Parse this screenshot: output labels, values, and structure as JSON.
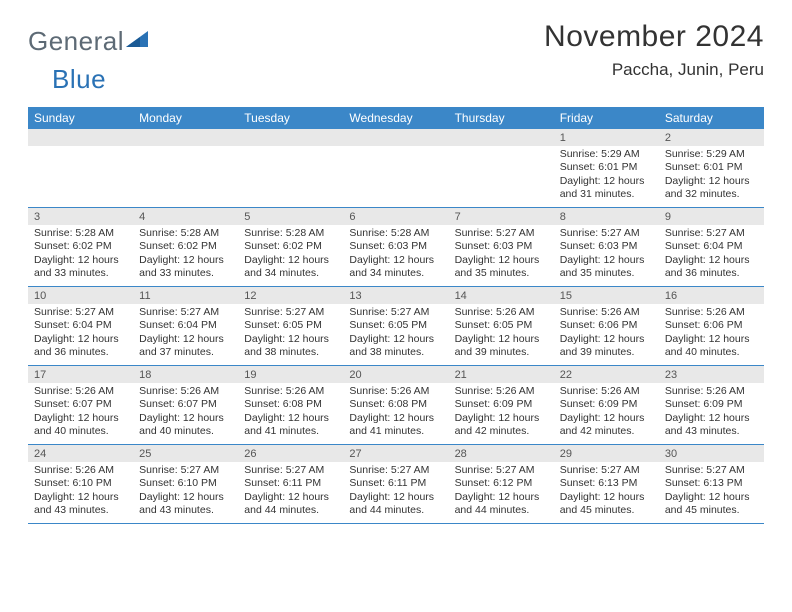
{
  "header": {
    "logo_general": "General",
    "logo_blue": "Blue",
    "month_title": "November 2024",
    "location": "Paccha, Junin, Peru"
  },
  "colors": {
    "header_bar": "#3b87c8",
    "daynum_bg": "#e8e8e8",
    "text": "#333333",
    "logo_blue": "#2a72b5",
    "logo_gray": "#5d6a75",
    "row_border": "#3b87c8"
  },
  "weekdays": [
    "Sunday",
    "Monday",
    "Tuesday",
    "Wednesday",
    "Thursday",
    "Friday",
    "Saturday"
  ],
  "weeks": [
    [
      {
        "num": "",
        "sunrise": "",
        "sunset": "",
        "daylight": ""
      },
      {
        "num": "",
        "sunrise": "",
        "sunset": "",
        "daylight": ""
      },
      {
        "num": "",
        "sunrise": "",
        "sunset": "",
        "daylight": ""
      },
      {
        "num": "",
        "sunrise": "",
        "sunset": "",
        "daylight": ""
      },
      {
        "num": "",
        "sunrise": "",
        "sunset": "",
        "daylight": ""
      },
      {
        "num": "1",
        "sunrise": "Sunrise: 5:29 AM",
        "sunset": "Sunset: 6:01 PM",
        "daylight": "Daylight: 12 hours and 31 minutes."
      },
      {
        "num": "2",
        "sunrise": "Sunrise: 5:29 AM",
        "sunset": "Sunset: 6:01 PM",
        "daylight": "Daylight: 12 hours and 32 minutes."
      }
    ],
    [
      {
        "num": "3",
        "sunrise": "Sunrise: 5:28 AM",
        "sunset": "Sunset: 6:02 PM",
        "daylight": "Daylight: 12 hours and 33 minutes."
      },
      {
        "num": "4",
        "sunrise": "Sunrise: 5:28 AM",
        "sunset": "Sunset: 6:02 PM",
        "daylight": "Daylight: 12 hours and 33 minutes."
      },
      {
        "num": "5",
        "sunrise": "Sunrise: 5:28 AM",
        "sunset": "Sunset: 6:02 PM",
        "daylight": "Daylight: 12 hours and 34 minutes."
      },
      {
        "num": "6",
        "sunrise": "Sunrise: 5:28 AM",
        "sunset": "Sunset: 6:03 PM",
        "daylight": "Daylight: 12 hours and 34 minutes."
      },
      {
        "num": "7",
        "sunrise": "Sunrise: 5:27 AM",
        "sunset": "Sunset: 6:03 PM",
        "daylight": "Daylight: 12 hours and 35 minutes."
      },
      {
        "num": "8",
        "sunrise": "Sunrise: 5:27 AM",
        "sunset": "Sunset: 6:03 PM",
        "daylight": "Daylight: 12 hours and 35 minutes."
      },
      {
        "num": "9",
        "sunrise": "Sunrise: 5:27 AM",
        "sunset": "Sunset: 6:04 PM",
        "daylight": "Daylight: 12 hours and 36 minutes."
      }
    ],
    [
      {
        "num": "10",
        "sunrise": "Sunrise: 5:27 AM",
        "sunset": "Sunset: 6:04 PM",
        "daylight": "Daylight: 12 hours and 36 minutes."
      },
      {
        "num": "11",
        "sunrise": "Sunrise: 5:27 AM",
        "sunset": "Sunset: 6:04 PM",
        "daylight": "Daylight: 12 hours and 37 minutes."
      },
      {
        "num": "12",
        "sunrise": "Sunrise: 5:27 AM",
        "sunset": "Sunset: 6:05 PM",
        "daylight": "Daylight: 12 hours and 38 minutes."
      },
      {
        "num": "13",
        "sunrise": "Sunrise: 5:27 AM",
        "sunset": "Sunset: 6:05 PM",
        "daylight": "Daylight: 12 hours and 38 minutes."
      },
      {
        "num": "14",
        "sunrise": "Sunrise: 5:26 AM",
        "sunset": "Sunset: 6:05 PM",
        "daylight": "Daylight: 12 hours and 39 minutes."
      },
      {
        "num": "15",
        "sunrise": "Sunrise: 5:26 AM",
        "sunset": "Sunset: 6:06 PM",
        "daylight": "Daylight: 12 hours and 39 minutes."
      },
      {
        "num": "16",
        "sunrise": "Sunrise: 5:26 AM",
        "sunset": "Sunset: 6:06 PM",
        "daylight": "Daylight: 12 hours and 40 minutes."
      }
    ],
    [
      {
        "num": "17",
        "sunrise": "Sunrise: 5:26 AM",
        "sunset": "Sunset: 6:07 PM",
        "daylight": "Daylight: 12 hours and 40 minutes."
      },
      {
        "num": "18",
        "sunrise": "Sunrise: 5:26 AM",
        "sunset": "Sunset: 6:07 PM",
        "daylight": "Daylight: 12 hours and 40 minutes."
      },
      {
        "num": "19",
        "sunrise": "Sunrise: 5:26 AM",
        "sunset": "Sunset: 6:08 PM",
        "daylight": "Daylight: 12 hours and 41 minutes."
      },
      {
        "num": "20",
        "sunrise": "Sunrise: 5:26 AM",
        "sunset": "Sunset: 6:08 PM",
        "daylight": "Daylight: 12 hours and 41 minutes."
      },
      {
        "num": "21",
        "sunrise": "Sunrise: 5:26 AM",
        "sunset": "Sunset: 6:09 PM",
        "daylight": "Daylight: 12 hours and 42 minutes."
      },
      {
        "num": "22",
        "sunrise": "Sunrise: 5:26 AM",
        "sunset": "Sunset: 6:09 PM",
        "daylight": "Daylight: 12 hours and 42 minutes."
      },
      {
        "num": "23",
        "sunrise": "Sunrise: 5:26 AM",
        "sunset": "Sunset: 6:09 PM",
        "daylight": "Daylight: 12 hours and 43 minutes."
      }
    ],
    [
      {
        "num": "24",
        "sunrise": "Sunrise: 5:26 AM",
        "sunset": "Sunset: 6:10 PM",
        "daylight": "Daylight: 12 hours and 43 minutes."
      },
      {
        "num": "25",
        "sunrise": "Sunrise: 5:27 AM",
        "sunset": "Sunset: 6:10 PM",
        "daylight": "Daylight: 12 hours and 43 minutes."
      },
      {
        "num": "26",
        "sunrise": "Sunrise: 5:27 AM",
        "sunset": "Sunset: 6:11 PM",
        "daylight": "Daylight: 12 hours and 44 minutes."
      },
      {
        "num": "27",
        "sunrise": "Sunrise: 5:27 AM",
        "sunset": "Sunset: 6:11 PM",
        "daylight": "Daylight: 12 hours and 44 minutes."
      },
      {
        "num": "28",
        "sunrise": "Sunrise: 5:27 AM",
        "sunset": "Sunset: 6:12 PM",
        "daylight": "Daylight: 12 hours and 44 minutes."
      },
      {
        "num": "29",
        "sunrise": "Sunrise: 5:27 AM",
        "sunset": "Sunset: 6:13 PM",
        "daylight": "Daylight: 12 hours and 45 minutes."
      },
      {
        "num": "30",
        "sunrise": "Sunrise: 5:27 AM",
        "sunset": "Sunset: 6:13 PM",
        "daylight": "Daylight: 12 hours and 45 minutes."
      }
    ]
  ]
}
